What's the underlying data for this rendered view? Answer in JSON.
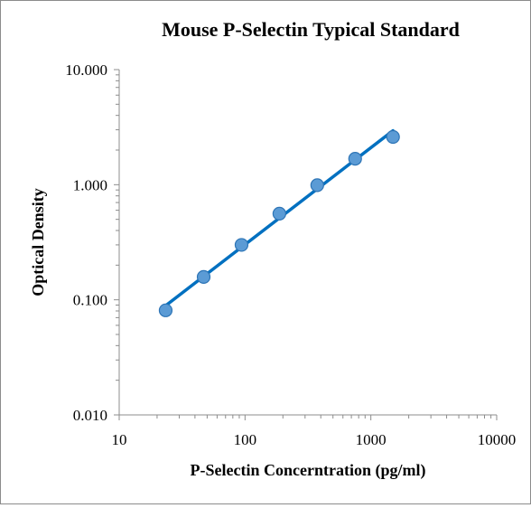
{
  "chart_data": {
    "type": "scatter",
    "title": "Mouse P-Selectin Typical Standard",
    "xlabel": "P-Selectin Concerntration (pg/ml)",
    "ylabel": "Optical Density",
    "x_scale": "log",
    "y_scale": "log",
    "xlim": [
      10,
      10000
    ],
    "ylim": [
      0.01,
      10
    ],
    "x_tick_labels": [
      "10",
      "100",
      "1000",
      "10000"
    ],
    "y_tick_labels": [
      "0.010",
      "0.100",
      "1.000",
      "10.000"
    ],
    "grid": false,
    "legend": "none",
    "series": [
      {
        "x": [
          23.4,
          46.9,
          93.8,
          187.5,
          375,
          750,
          1500
        ],
        "y": [
          0.081,
          0.158,
          0.3,
          0.56,
          0.99,
          1.68,
          2.6
        ],
        "marker": "circle",
        "trendline": "power"
      }
    ],
    "trendline_range": [
      23.4,
      1500
    ],
    "colors": {
      "marker_fill": "#5B9BD5",
      "marker_stroke": "#2E75B6",
      "line": "#0070C0",
      "axis": "#8c8c8c"
    }
  }
}
